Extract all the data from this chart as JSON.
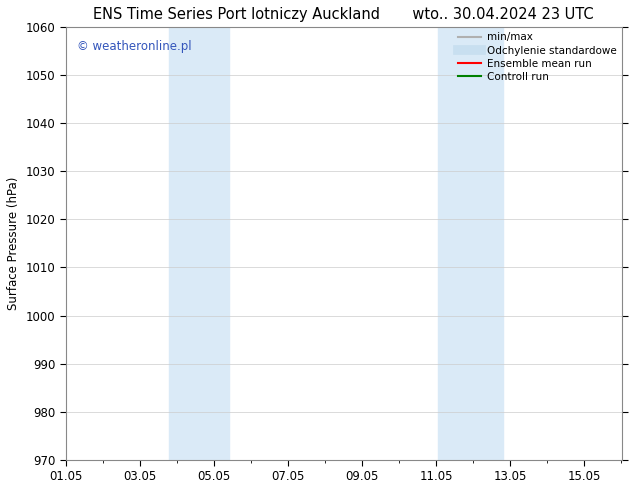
{
  "title": "ENS Time Series Port lotniczy Auckland       wto.. 30.04.2024 23 UTC",
  "ylabel": "Surface Pressure (hPa)",
  "ylim": [
    970,
    1060
  ],
  "yticks": [
    970,
    980,
    990,
    1000,
    1010,
    1020,
    1030,
    1040,
    1050,
    1060
  ],
  "xlim_start": 1,
  "xlim_end": 16,
  "xtick_labels": [
    "01.05",
    "03.05",
    "05.05",
    "07.05",
    "09.05",
    "11.05",
    "13.05",
    "15.05"
  ],
  "xtick_positions": [
    1,
    3,
    5,
    7,
    9,
    11,
    13,
    15
  ],
  "shaded_bands": [
    {
      "x_start": 3.8,
      "x_end": 5.4
    },
    {
      "x_start": 11.05,
      "x_end": 12.8
    }
  ],
  "shade_color": "#daeaf7",
  "watermark_text": "© weatheronline.pl",
  "watermark_color": "#3355bb",
  "legend_entries": [
    {
      "label": "min/max",
      "color": "#b0b0b0",
      "lw": 1.5
    },
    {
      "label": "Odchylenie standardowe",
      "color": "#c8dff0",
      "lw": 7
    },
    {
      "label": "Ensemble mean run",
      "color": "#ff0000",
      "lw": 1.5
    },
    {
      "label": "Controll run",
      "color": "#008000",
      "lw": 1.5
    }
  ],
  "bg_color": "#ffffff",
  "grid_color": "#cccccc",
  "tick_label_fontsize": 8.5,
  "title_fontsize": 10.5,
  "ylabel_fontsize": 8.5,
  "watermark_fontsize": 8.5,
  "legend_fontsize": 7.5
}
